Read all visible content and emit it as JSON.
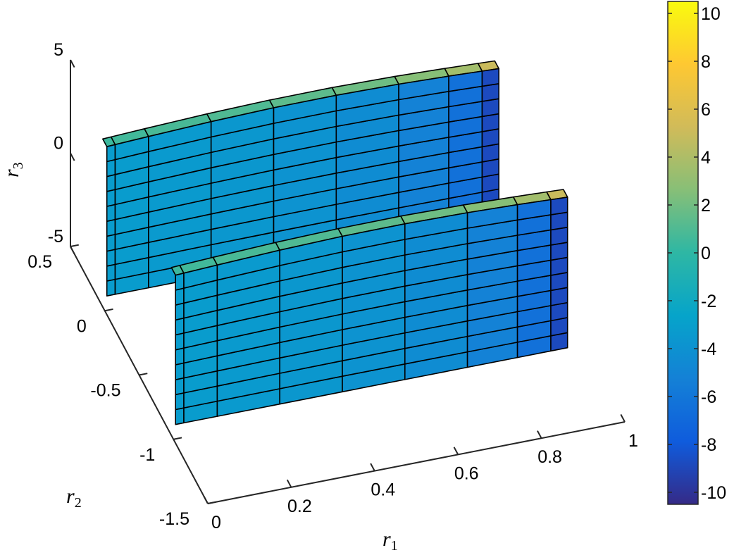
{
  "chart_data": {
    "type": "surface",
    "title": "",
    "xlabel": "r_1",
    "ylabel": "r_2",
    "zlabel": "r_3",
    "xlabel_parts": {
      "base": "r",
      "sub": "1"
    },
    "ylabel_parts": {
      "base": "r",
      "sub": "2"
    },
    "zlabel_parts": {
      "base": "r",
      "sub": "3"
    },
    "xlim": [
      0,
      1
    ],
    "ylim": [
      -1.5,
      0.5
    ],
    "zlim": [
      -5,
      5
    ],
    "x_ticks": [
      0,
      0.2,
      0.4,
      0.6,
      0.8,
      1
    ],
    "x_tick_labels": [
      "0",
      "0.2",
      "0.4",
      "0.6",
      "0.8",
      "1"
    ],
    "y_ticks": [
      -1.5,
      -1,
      -0.5,
      0,
      0.5
    ],
    "y_tick_labels": [
      "-1.5",
      "-1",
      "-0.5",
      "0",
      "0.5"
    ],
    "z_ticks": [
      -5,
      0,
      5
    ],
    "z_tick_labels": [
      "-5",
      "0",
      "5"
    ],
    "grid": false,
    "colormap": "parula",
    "colorbar": {
      "location": "right",
      "limits": [
        -10.5,
        10.5
      ],
      "ticks": [
        10,
        8,
        6,
        4,
        2,
        0,
        -2,
        -4,
        -6,
        -8,
        -10
      ],
      "tick_labels": [
        "10",
        "8",
        "6",
        "4",
        "2",
        "0",
        "-2",
        "-4",
        "-6",
        "-8",
        "-10"
      ],
      "colors": [
        "#352a87",
        "#0f5cdd",
        "#1481d6",
        "#06a4ca",
        "#2eb7a4",
        "#87bf77",
        "#d1bb59",
        "#fec832",
        "#f9fb0e"
      ]
    },
    "surfaces": [
      {
        "name": "",
        "r2_center": 0.0,
        "r2_halfwidth": 0.03,
        "r3_range": [
          -4,
          4
        ]
      },
      {
        "name": "",
        "r2_center": -1.0,
        "r2_halfwidth": 0.03,
        "r3_range": [
          -4,
          4
        ]
      }
    ],
    "mesh": {
      "r1_edges": [
        0,
        0.02,
        0.1,
        0.25,
        0.4,
        0.55,
        0.7,
        0.82,
        0.9,
        0.94
      ],
      "r3_rows": 10
    },
    "face_values": {
      "front": [
        -3.2,
        -3.2,
        -3.4,
        -3.6,
        -3.9,
        -4.4,
        -5.2,
        -6.4,
        -8.8
      ],
      "top": [
        0.4,
        0.6,
        0.8,
        1.0,
        1.4,
        1.9,
        2.6,
        3.6,
        5.0
      ]
    }
  }
}
